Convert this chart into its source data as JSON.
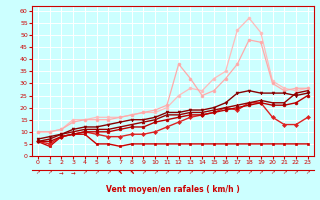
{
  "xlabel": "Vent moyen/en rafales ( km/h )",
  "bg_color": "#ccffff",
  "grid_color": "#ffffff",
  "x_values": [
    0,
    1,
    2,
    3,
    4,
    5,
    6,
    7,
    8,
    9,
    10,
    11,
    12,
    13,
    14,
    15,
    16,
    17,
    18,
    19,
    20,
    21,
    22,
    23
  ],
  "lines": [
    {
      "y": [
        10,
        10,
        11,
        15,
        15,
        16,
        16,
        16,
        17,
        18,
        18,
        20,
        25,
        28,
        27,
        32,
        35,
        52,
        57,
        51,
        31,
        28,
        27,
        28
      ],
      "color": "#ffbbbb",
      "linewidth": 0.9
    },
    {
      "y": [
        10,
        10,
        11,
        14,
        15,
        15,
        15,
        16,
        17,
        18,
        19,
        21,
        38,
        32,
        25,
        27,
        32,
        38,
        48,
        47,
        30,
        27,
        28,
        28
      ],
      "color": "#ffaaaa",
      "linewidth": 0.9
    },
    {
      "y": [
        6,
        4,
        8,
        9,
        9,
        5,
        5,
        4,
        5,
        5,
        5,
        5,
        5,
        5,
        5,
        5,
        5,
        5,
        5,
        5,
        5,
        5,
        5,
        5
      ],
      "color": "#cc0000",
      "linewidth": 1.0
    },
    {
      "y": [
        6,
        5,
        8,
        9,
        10,
        9,
        8,
        8,
        9,
        9,
        10,
        12,
        14,
        16,
        17,
        18,
        20,
        19,
        22,
        22,
        16,
        13,
        13,
        16
      ],
      "color": "#dd2222",
      "linewidth": 1.0
    },
    {
      "y": [
        6,
        6,
        8,
        9,
        10,
        10,
        10,
        11,
        12,
        12,
        14,
        15,
        16,
        17,
        17,
        18,
        19,
        20,
        21,
        22,
        21,
        21,
        22,
        25
      ],
      "color": "#bb0000",
      "linewidth": 1.0
    },
    {
      "y": [
        6,
        7,
        9,
        10,
        11,
        11,
        11,
        12,
        13,
        14,
        15,
        17,
        17,
        18,
        18,
        19,
        20,
        21,
        22,
        23,
        22,
        22,
        26,
        27
      ],
      "color": "#990000",
      "linewidth": 1.0
    },
    {
      "y": [
        7,
        8,
        9,
        11,
        12,
        12,
        13,
        14,
        15,
        15,
        16,
        18,
        18,
        19,
        19,
        20,
        22,
        26,
        27,
        26,
        26,
        26,
        25,
        26
      ],
      "color": "#880000",
      "linewidth": 1.0
    }
  ],
  "markers": [
    {
      "shape": "o",
      "color": "#ffbbbb"
    },
    {
      "shape": "o",
      "color": "#ffaaaa"
    },
    {
      "shape": "s",
      "color": "#cc0000"
    },
    {
      "shape": "D",
      "color": "#dd2222"
    },
    {
      "shape": "o",
      "color": "#bb0000"
    },
    {
      "shape": "^",
      "color": "#990000"
    },
    {
      "shape": "v",
      "color": "#880000"
    }
  ],
  "ylim": [
    0,
    62
  ],
  "yticks": [
    0,
    5,
    10,
    15,
    20,
    25,
    30,
    35,
    40,
    45,
    50,
    55,
    60
  ],
  "xticks": [
    0,
    1,
    2,
    3,
    4,
    5,
    6,
    7,
    8,
    9,
    10,
    11,
    12,
    13,
    14,
    15,
    16,
    17,
    18,
    19,
    20,
    21,
    22,
    23
  ],
  "tick_color": "#cc0000",
  "label_color": "#cc0000",
  "axis_color": "#cc0000",
  "arrow_chars": [
    "↗",
    "↗",
    "→",
    "→",
    "↗",
    "↗",
    "↗",
    "⬉",
    "⬉",
    "↗",
    "↗",
    "↗",
    "↗",
    "↗",
    "↗",
    "↗",
    "↗",
    "↗",
    "↗",
    "↗",
    "↗",
    "↗",
    "↗",
    "↗"
  ]
}
